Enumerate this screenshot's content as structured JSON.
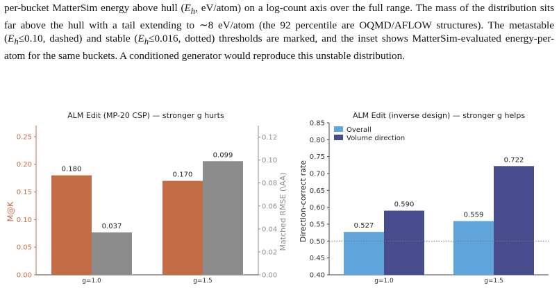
{
  "caption": {
    "text_html": "per-bucket MatterSim energy above hull (<i>E<sub>h</sub></i>, eV/atom) on a log-count axis over the full range. The mass of the distribution sits far above the hull with a tail extending to ∼8 eV/atom (the 92 percentile are OQMD/AFLOW structures). The metastable (<i>E<sub>h</sub></i>≤0.10, dashed) and stable (<i>E<sub>h</sub></i>≤0.016, dotted) thresholds are marked, and the inset shows MatterSim-evaluated energy-per-atom for the same buckets. A conditioned generator would reproduce this unstable distribution."
  },
  "chart_data": [
    {
      "type": "bar",
      "title": "ALM Edit (MP-20 CSP) — stronger g hurts",
      "categories": [
        "g=1.0",
        "g=1.5"
      ],
      "ylabel": "M@K",
      "ylabel_right": "Matched RMSE (\\AA)",
      "ylim": [
        0,
        0.27
      ],
      "ylim_right": [
        0,
        0.13
      ],
      "yticks": [
        0.0,
        0.05,
        0.1,
        0.15,
        0.2,
        0.25
      ],
      "yticks_right": [
        0.0,
        0.02,
        0.04,
        0.06,
        0.08,
        0.1,
        0.12
      ],
      "series": [
        {
          "axis": "left",
          "values": [
            0.18,
            0.17
          ],
          "labels": [
            "0.180",
            "0.170"
          ],
          "color": "#c26d45"
        },
        {
          "axis": "right",
          "values": [
            0.037,
            0.099
          ],
          "labels": [
            "0.037",
            "0.099"
          ],
          "color": "#8c8c8c"
        }
      ]
    },
    {
      "type": "bar",
      "title": "ALM Edit (inverse design) — stronger g helps",
      "categories": [
        "g=1.0",
        "g=1.5"
      ],
      "ylabel": "Direction-correct rate",
      "ylim": [
        0.4,
        0.85
      ],
      "yticks": [
        0.4,
        0.45,
        0.5,
        0.55,
        0.6,
        0.65,
        0.7,
        0.75,
        0.8,
        0.85
      ],
      "reference_line": 0.5,
      "legend": "top-left",
      "series": [
        {
          "name": "Overall",
          "values": [
            0.527,
            0.559
          ],
          "labels": [
            "0.527",
            "0.559"
          ],
          "color": "#5fa5dc"
        },
        {
          "name": "Volume direction",
          "values": [
            0.59,
            0.722
          ],
          "labels": [
            "0.590",
            "0.722"
          ],
          "color": "#474d8c"
        }
      ]
    }
  ]
}
